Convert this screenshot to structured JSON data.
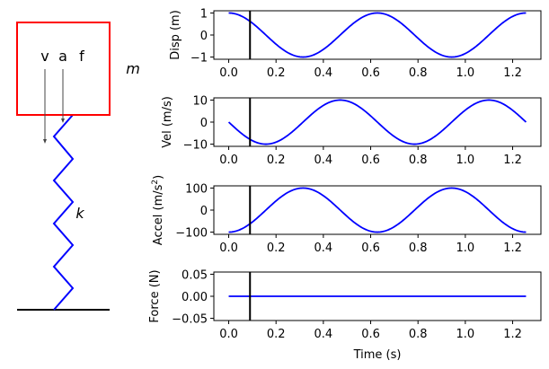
{
  "diagram": {
    "mass_label": "m",
    "spring_label": "k",
    "vector_labels": [
      "v",
      "a",
      "f"
    ],
    "colors": {
      "mass": "#ff0000",
      "spring": "#0000ff",
      "ground": "#000000",
      "arrows": "#444444"
    }
  },
  "chart_data": [
    {
      "type": "line",
      "ylabel": "Disp (m)",
      "formula": "cos(10t)",
      "x_range": [
        0,
        1.2566
      ],
      "xlim": [
        -0.0628,
        1.3195
      ],
      "ylim": [
        -1.1,
        1.1
      ],
      "xticks": [
        "0.0",
        "0.2",
        "0.4",
        "0.6",
        "0.8",
        "1.0",
        "1.2"
      ],
      "yticks": [
        {
          "v": 1,
          "label": "1"
        },
        {
          "v": 0,
          "label": "0"
        },
        {
          "v": -1,
          "label": "−1"
        }
      ],
      "cursor_t": 0.09,
      "color": "#0000ff"
    },
    {
      "type": "line",
      "ylabel": "Vel (m/s)",
      "formula": "-10 sin(10t)",
      "x_range": [
        0,
        1.2566
      ],
      "xlim": [
        -0.0628,
        1.3195
      ],
      "ylim": [
        -11,
        11
      ],
      "xticks": [
        "0.0",
        "0.2",
        "0.4",
        "0.6",
        "0.8",
        "1.0",
        "1.2"
      ],
      "yticks": [
        {
          "v": 10,
          "label": "10"
        },
        {
          "v": 0,
          "label": "0"
        },
        {
          "v": -10,
          "label": "−10"
        }
      ],
      "cursor_t": 0.09,
      "color": "#0000ff"
    },
    {
      "type": "line",
      "ylabel": "Accel (m/s",
      "ylabel_sup": "2",
      "ylabel_end": ")",
      "formula": "-100 cos(10t)",
      "x_range": [
        0,
        1.2566
      ],
      "xlim": [
        -0.0628,
        1.3195
      ],
      "ylim": [
        -110,
        110
      ],
      "xticks": [
        "0.0",
        "0.2",
        "0.4",
        "0.6",
        "0.8",
        "1.0",
        "1.2"
      ],
      "yticks": [
        {
          "v": 100,
          "label": "100"
        },
        {
          "v": 0,
          "label": "0"
        },
        {
          "v": -100,
          "label": "−100"
        }
      ],
      "cursor_t": 0.09,
      "color": "#0000ff"
    },
    {
      "type": "line",
      "ylabel": "Force (N)",
      "xlabel": "Time (s)",
      "formula": "0",
      "x_range": [
        0,
        1.2566
      ],
      "xlim": [
        -0.0628,
        1.3195
      ],
      "ylim": [
        -0.055,
        0.055
      ],
      "xticks": [
        "0.0",
        "0.2",
        "0.4",
        "0.6",
        "0.8",
        "1.0",
        "1.2"
      ],
      "yticks": [
        {
          "v": 0.05,
          "label": "0.05"
        },
        {
          "v": 0,
          "label": "0.00"
        },
        {
          "v": -0.05,
          "label": "−0.05"
        }
      ],
      "cursor_t": 0.09,
      "color": "#0000ff"
    }
  ]
}
